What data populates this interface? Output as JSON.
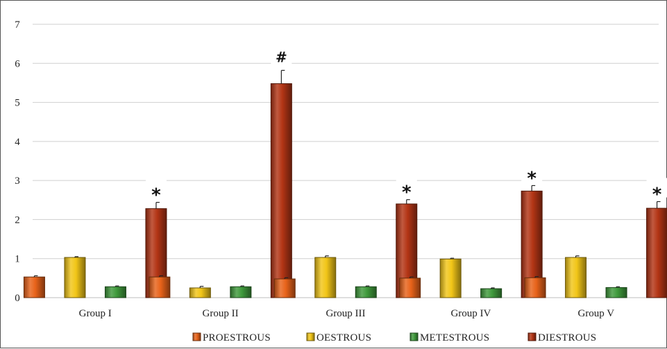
{
  "chart_data": {
    "type": "bar",
    "title": "",
    "xlabel": "",
    "ylabel": "",
    "ylim": [
      0,
      7
    ],
    "yticks": [
      "0",
      "1",
      "2",
      "3",
      "4",
      "5",
      "6",
      "7"
    ],
    "grid": true,
    "legend_position": "bottom",
    "categories": [
      "Group I",
      "Group II",
      "Group III",
      "Group IV",
      "Group V"
    ],
    "series": [
      {
        "name": "PROESTROUS",
        "color": "#e8631a",
        "values": [
          0.53,
          0.53,
          0.48,
          0.5,
          0.51
        ],
        "errors": [
          0.03,
          0.03,
          0.03,
          0.03,
          0.03
        ]
      },
      {
        "name": "OESTROUS",
        "color": "#f2c618",
        "values": [
          1.03,
          0.25,
          1.03,
          0.99,
          1.03
        ],
        "errors": [
          0.02,
          0.04,
          0.04,
          0.02,
          0.04
        ]
      },
      {
        "name": "METESTROUS",
        "color": "#3f9a3c",
        "values": [
          0.28,
          0.28,
          0.28,
          0.23,
          0.26
        ],
        "errors": [
          0.02,
          0.02,
          0.02,
          0.02,
          0.02
        ]
      },
      {
        "name": "DIESTROUS",
        "color": "#b33515",
        "values": [
          2.28,
          5.48,
          2.4,
          2.73,
          2.29
        ],
        "errors": [
          0.16,
          0.34,
          0.11,
          0.14,
          0.17
        ]
      }
    ],
    "annotations": [
      {
        "category": "Group I",
        "series": "DIESTROUS",
        "text": "*"
      },
      {
        "category": "Group II",
        "series": "DIESTROUS",
        "text": "#"
      },
      {
        "category": "Group III",
        "series": "DIESTROUS",
        "text": "*"
      },
      {
        "category": "Group IV",
        "series": "DIESTROUS",
        "text": "*"
      },
      {
        "category": "Group V",
        "series": "DIESTROUS",
        "text": "*"
      }
    ]
  }
}
